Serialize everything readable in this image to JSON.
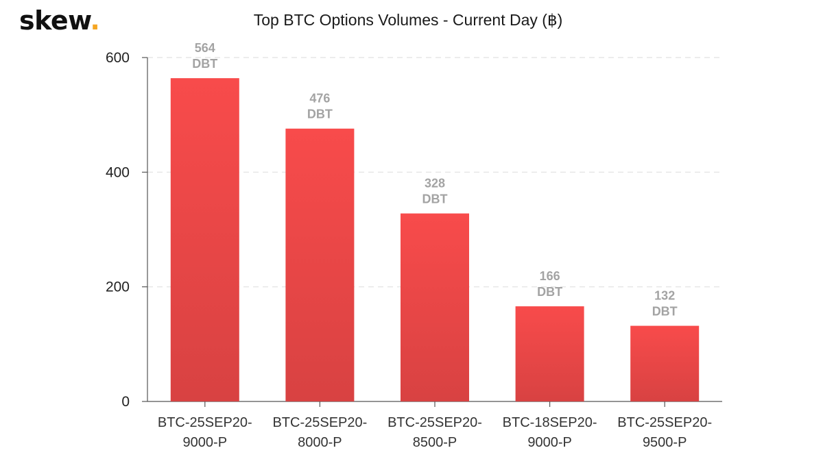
{
  "brand": {
    "name": "skew",
    "dot": "."
  },
  "colors": {
    "bar_top": "#f84b4b",
    "bar_bottom": "#d84242",
    "grid": "#e6e6e6",
    "axis": "#555555"
  },
  "chart_data": {
    "type": "bar",
    "title": "Top BTC Options Volumes - Current Day (฿)",
    "categories": [
      [
        "BTC-25SEP20-",
        "9000-P"
      ],
      [
        "BTC-25SEP20-",
        "8000-P"
      ],
      [
        "BTC-25SEP20-",
        "8500-P"
      ],
      [
        "BTC-18SEP20-",
        "9000-P"
      ],
      [
        "BTC-25SEP20-",
        "9500-P"
      ]
    ],
    "values": [
      564,
      476,
      328,
      166,
      132
    ],
    "data_labels": [
      [
        "564",
        "DBT"
      ],
      [
        "476",
        "DBT"
      ],
      [
        "328",
        "DBT"
      ],
      [
        "166",
        "DBT"
      ],
      [
        "132",
        "DBT"
      ]
    ],
    "yticks": [
      0,
      200,
      400,
      600
    ],
    "ylim": [
      0,
      600
    ],
    "grid": true,
    "xlabel": "",
    "ylabel": ""
  }
}
